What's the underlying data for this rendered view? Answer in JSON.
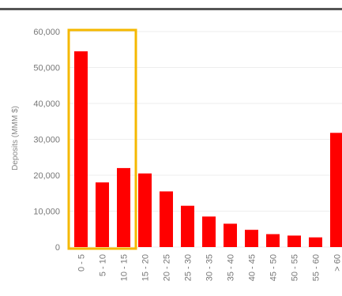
{
  "chart_data": {
    "type": "bar",
    "title": "",
    "xlabel": "",
    "ylabel": "Deposits (MMM $)",
    "categories": [
      "0 - 5",
      "5 - 10",
      "10 - 15",
      "15 - 20",
      "20 - 25",
      "25 - 30",
      "30 - 35",
      "35 - 40",
      "40 - 45",
      "45 - 50",
      "50 - 55",
      "55 - 60",
      "> 60"
    ],
    "values": [
      54500,
      18000,
      22000,
      20500,
      15500,
      11500,
      8500,
      6500,
      4800,
      3600,
      3200,
      2700,
      31800
    ],
    "ylim": [
      0,
      60000
    ],
    "yticks": [
      "0",
      "10,000",
      "20,000",
      "30,000",
      "40,000",
      "50,000",
      "60,000"
    ],
    "ytick_values": [
      0,
      10000,
      20000,
      30000,
      40000,
      50000,
      60000
    ],
    "grid": true,
    "colors": {
      "bar": "#ff0000",
      "highlight": "#f5b800",
      "grid": "#eeeeee"
    },
    "highlight_categories": [
      "0 - 5",
      "5 - 10",
      "10 - 15"
    ]
  }
}
